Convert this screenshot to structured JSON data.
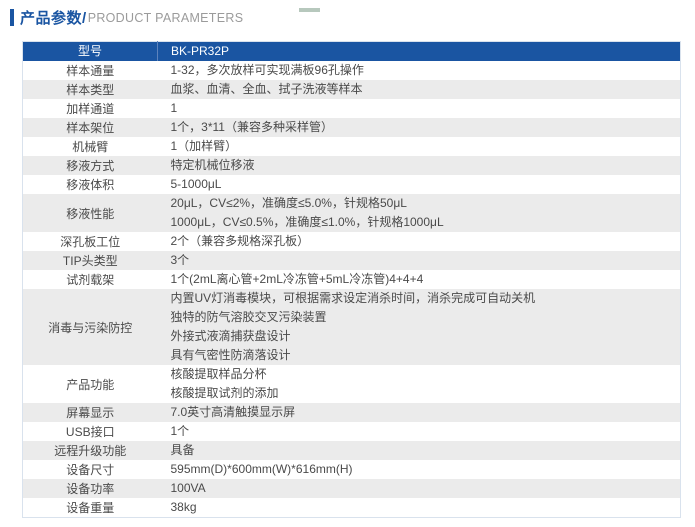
{
  "colors": {
    "brand_blue": "#1a55a2",
    "header_text": "#ffffff",
    "stripe_gray": "#ebebeb",
    "body_text": "#4a4a4a",
    "title_en_gray": "#9b9b9b",
    "table_border": "#d9e2ed",
    "top_fragment": "#b7c8bd"
  },
  "section_title": {
    "zh": "产品参数",
    "slash": "/",
    "en": "PRODUCT PARAMETERS"
  },
  "table": {
    "header": {
      "label": "型号",
      "value": "BK-PR32P"
    },
    "rows": [
      {
        "label": "样本通量",
        "lines": [
          "1-32，多次放样可实现满板96孔操作"
        ]
      },
      {
        "label": "样本类型",
        "lines": [
          "血浆、血清、全血、拭子洗液等样本"
        ]
      },
      {
        "label": "加样通道",
        "lines": [
          "1"
        ]
      },
      {
        "label": "样本架位",
        "lines": [
          "1个，3*11（兼容多种采样管）"
        ]
      },
      {
        "label": "机械臂",
        "lines": [
          "1（加样臂）"
        ]
      },
      {
        "label": "移液方式",
        "lines": [
          "特定机械位移液"
        ]
      },
      {
        "label": "移液体积",
        "lines": [
          "5-1000μL"
        ]
      },
      {
        "label": "移液性能",
        "lines": [
          "20μL，CV≤2%，准确度≤5.0%，针规格50μL",
          "1000μL，CV≤0.5%，准确度≤1.0%，针规格1000μL"
        ]
      },
      {
        "label": "深孔板工位",
        "lines": [
          "2个（兼容多规格深孔板）"
        ]
      },
      {
        "label": "TIP头类型",
        "lines": [
          "3个"
        ]
      },
      {
        "label": "试剂载架",
        "lines": [
          "1个(2mL离心管+2mL冷冻管+5mL冷冻管)4+4+4"
        ]
      },
      {
        "label": "消毒与污染防控",
        "lines": [
          "内置UV灯消毒模块，可根据需求设定消杀时间，消杀完成可自动关机",
          "独特的防气溶胶交叉污染装置",
          "外接式液滴捕获盘设计",
          "具有气密性防滴落设计"
        ]
      },
      {
        "label": "产品功能",
        "lines": [
          "核酸提取样品分杯",
          "核酸提取试剂的添加"
        ]
      },
      {
        "label": "屏幕显示",
        "lines": [
          "7.0英寸高清触摸显示屏"
        ]
      },
      {
        "label": "USB接口",
        "lines": [
          "1个"
        ]
      },
      {
        "label": "远程升级功能",
        "lines": [
          "具备"
        ]
      },
      {
        "label": "设备尺寸",
        "lines": [
          "595mm(D)*600mm(W)*616mm(H)"
        ]
      },
      {
        "label": "设备功率",
        "lines": [
          "100VA"
        ]
      },
      {
        "label": "设备重量",
        "lines": [
          "38kg"
        ]
      }
    ]
  }
}
